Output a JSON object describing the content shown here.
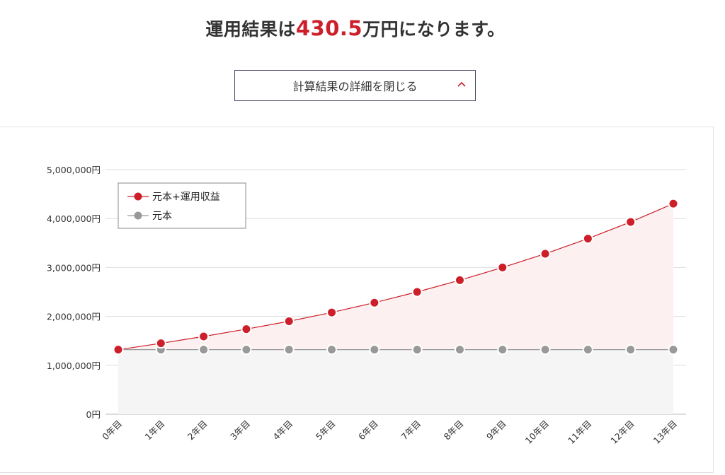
{
  "headline": {
    "prefix": "運用結果は",
    "amount": "430.5",
    "suffix": "万円になります。"
  },
  "toggle": {
    "label": "計算結果の詳細を閉じる",
    "icon": "chevron-up-icon"
  },
  "colors": {
    "accent": "#cc1f2a",
    "principal": "#999999",
    "area_total": "#fdf0f0",
    "area_principal": "#f5f5f5"
  },
  "chart_data": {
    "type": "line",
    "categories": [
      "0年目",
      "1年目",
      "2年目",
      "3年目",
      "4年目",
      "5年目",
      "6年目",
      "7年目",
      "8年目",
      "9年目",
      "10年目",
      "11年目",
      "12年目",
      "13年目"
    ],
    "series": [
      {
        "name": "元本+運用収益",
        "color": "#cc1f2a",
        "values": [
          1320000,
          1450000,
          1590000,
          1740000,
          1900000,
          2080000,
          2280000,
          2500000,
          2740000,
          3000000,
          3280000,
          3590000,
          3930000,
          4305000
        ]
      },
      {
        "name": "元本",
        "color": "#999999",
        "values": [
          1320000,
          1320000,
          1320000,
          1320000,
          1320000,
          1320000,
          1320000,
          1320000,
          1320000,
          1320000,
          1320000,
          1320000,
          1320000,
          1320000
        ]
      }
    ],
    "ylim": [
      0,
      5000000
    ],
    "yticks": [
      0,
      1000000,
      2000000,
      3000000,
      4000000,
      5000000
    ],
    "ytick_labels": [
      "0円",
      "1,000,000円",
      "2,000,000円",
      "3,000,000円",
      "4,000,000円",
      "5,000,000円"
    ],
    "grid": true,
    "legend_position": "top-left",
    "filled_area": true
  }
}
